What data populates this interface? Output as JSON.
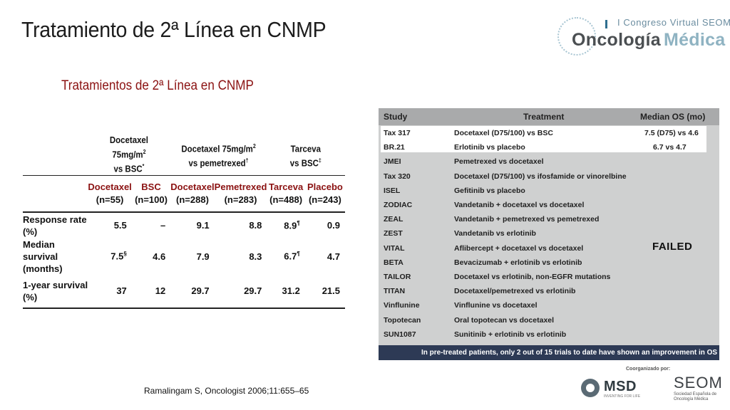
{
  "slide": {
    "title": "Tratamiento de 2ª Línea en CNMP",
    "subtitle": "Tratamientos de 2ª Línea en CNMP",
    "reference": "Ramalingam S, Oncologist 2006;11:655–65"
  },
  "logo": {
    "congress": "I Congreso Virtual SEOM",
    "word1": "Oncología",
    "word2": "Médica"
  },
  "left_table": {
    "groups": [
      {
        "line1": "Docetaxel 75mg/m",
        "sup": "2",
        "line2": "vs BSC",
        "mark": "*"
      },
      {
        "line1": "Docetaxel 75mg/m",
        "sup": "2",
        "line2": "vs pemetrexed",
        "mark": "†"
      },
      {
        "line1": "Tarceva",
        "sup": "",
        "line2": "vs BSC",
        "mark": "‡"
      }
    ],
    "arms": [
      {
        "name": "Docetaxel",
        "n": "(n=55)"
      },
      {
        "name": "BSC",
        "n": "(n=100)"
      },
      {
        "name": "Docetaxel",
        "n": "(n=288)"
      },
      {
        "name": "Pemetrexed",
        "n": "(n=283)"
      },
      {
        "name": "Tarceva",
        "n": "(n=488)"
      },
      {
        "name": "Placebo",
        "n": "(n=243)"
      }
    ],
    "rows": [
      {
        "label1": "Response rate (%)",
        "label2": "",
        "values": [
          "5.5",
          "–",
          "9.1",
          "8.8",
          "8.9",
          "0.9"
        ],
        "marks": [
          "",
          "",
          "",
          "",
          "¶",
          ""
        ]
      },
      {
        "label1": "Median survival",
        "label2": "(months)",
        "values": [
          "7.5",
          "4.6",
          "7.9",
          "8.3",
          "6.7",
          "4.7"
        ],
        "marks": [
          "§",
          "",
          "",
          "",
          "¶",
          ""
        ]
      },
      {
        "label1": "1-year survival",
        "label2": "(%)",
        "values": [
          "37",
          "12",
          "29.7",
          "29.7",
          "31.2",
          "21.5"
        ],
        "marks": [
          "",
          "",
          "",
          "",
          "",
          ""
        ]
      }
    ]
  },
  "right_panel": {
    "headers": {
      "study": "Study",
      "treatment": "Treatment",
      "os": "Median OS (mo)"
    },
    "rows": [
      {
        "study": "Tax 317",
        "treatment": "Docetaxel (D75/100) vs BSC",
        "os": "7.5 (D75) vs 4.6"
      },
      {
        "study": "BR.21",
        "treatment": "Erlotinib vs placebo",
        "os": "6.7 vs 4.7"
      },
      {
        "study": "JMEI",
        "treatment": "Pemetrexed vs docetaxel",
        "os": ""
      },
      {
        "study": "Tax 320",
        "treatment": "Docetaxel (D75/100) vs ifosfamide or vinorelbine",
        "os": ""
      },
      {
        "study": "ISEL",
        "treatment": "Gefitinib vs placebo",
        "os": ""
      },
      {
        "study": "ZODIAC",
        "treatment": "Vandetanib + docetaxel vs docetaxel",
        "os": ""
      },
      {
        "study": "ZEAL",
        "treatment": "Vandetanib + pemetrexed vs pemetrexed",
        "os": ""
      },
      {
        "study": "ZEST",
        "treatment": "Vandetanib vs erlotinib",
        "os": ""
      },
      {
        "study": "VITAL",
        "treatment": "Aflibercept + docetaxel vs docetaxel",
        "os": ""
      },
      {
        "study": "BETA",
        "treatment": "Bevacizumab + erlotinib vs erlotinib",
        "os": ""
      },
      {
        "study": "TAILOR",
        "treatment": "Docetaxel vs erlotinib, non-EGFR mutations",
        "os": ""
      },
      {
        "study": "TITAN",
        "treatment": "Docetaxel/pemetrexed vs erlotinib",
        "os": ""
      },
      {
        "study": "Vinflunine",
        "treatment": "Vinflunine vs docetaxel",
        "os": ""
      },
      {
        "study": "Topotecan",
        "treatment": "Oral topotecan vs docetaxel",
        "os": ""
      },
      {
        "study": "SUN1087",
        "treatment": "Sunitinib + erlotinib vs erlotinib",
        "os": ""
      }
    ],
    "failed_label": "FAILED",
    "footer": "In pre-treated patients, only 2 out of 15 trials to date have shown an improvement in OS"
  },
  "sponsors": {
    "coorganized": "Coorganizado por:",
    "msd": "MSD",
    "msd_tagline": "INVENTING FOR LIFE",
    "seom": "SEOM",
    "seom_tagline": "Sociedad Española de Oncología Médica"
  }
}
